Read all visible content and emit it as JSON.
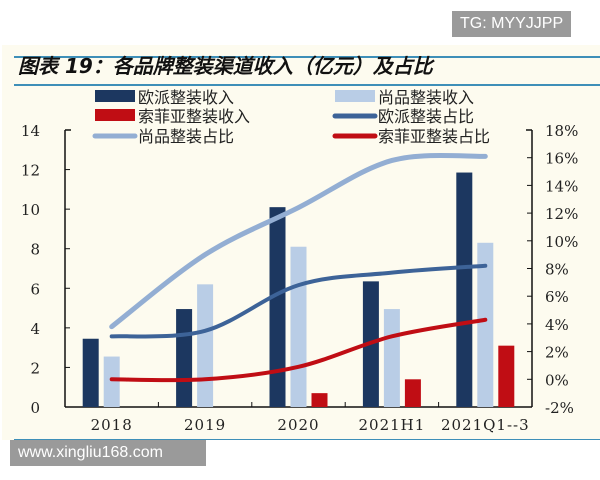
{
  "watermark_top": "TG: MYYJJPP",
  "watermark_bottom": "www.xingliu168.com",
  "chart_data": {
    "type": "bar",
    "title": "图表 19：各品牌整装渠道收入（亿元）及占比",
    "categories": [
      "2018",
      "2019",
      "2020",
      "2021H1",
      "2021Q1-3"
    ],
    "category_labels": [
      "2018",
      "2019",
      "2020",
      "2021H1",
      "2021Q1--3"
    ],
    "y_left": {
      "range": [
        0,
        14
      ],
      "ticks": [
        "0",
        "2",
        "4",
        "6",
        "8",
        "10",
        "12",
        "14"
      ]
    },
    "y_right": {
      "range": [
        -2,
        18
      ],
      "ticks": [
        "-2%",
        "0%",
        "2%",
        "4%",
        "6%",
        "8%",
        "10%",
        "12%",
        "14%",
        "16%",
        "18%"
      ]
    },
    "legend_placement": "top",
    "bars": [
      {
        "name": "欧派整装收入",
        "color": "#1c3760",
        "values": [
          3.45,
          4.95,
          10.1,
          6.35,
          11.85
        ]
      },
      {
        "name": "尚品整装收入",
        "color": "#b9cde6",
        "values": [
          2.55,
          6.2,
          8.1,
          4.95,
          8.3
        ]
      },
      {
        "name": "索菲亚整装收入",
        "color": "#c00d14",
        "values": [
          null,
          null,
          0.7,
          1.4,
          3.1
        ]
      }
    ],
    "lines": [
      {
        "name": "欧派整装占比",
        "axis": "right",
        "color": "#3d6398",
        "values": [
          3.1,
          3.5,
          6.8,
          7.7,
          8.2
        ]
      },
      {
        "name": "尚品整装占比",
        "axis": "right",
        "color": "#93aed3",
        "values": [
          3.8,
          9.0,
          12.4,
          15.8,
          16.1
        ]
      },
      {
        "name": "索菲亚整装占比",
        "axis": "right",
        "color": "#c00d14",
        "values": [
          0.0,
          0.0,
          0.9,
          3.1,
          4.3
        ]
      }
    ]
  }
}
